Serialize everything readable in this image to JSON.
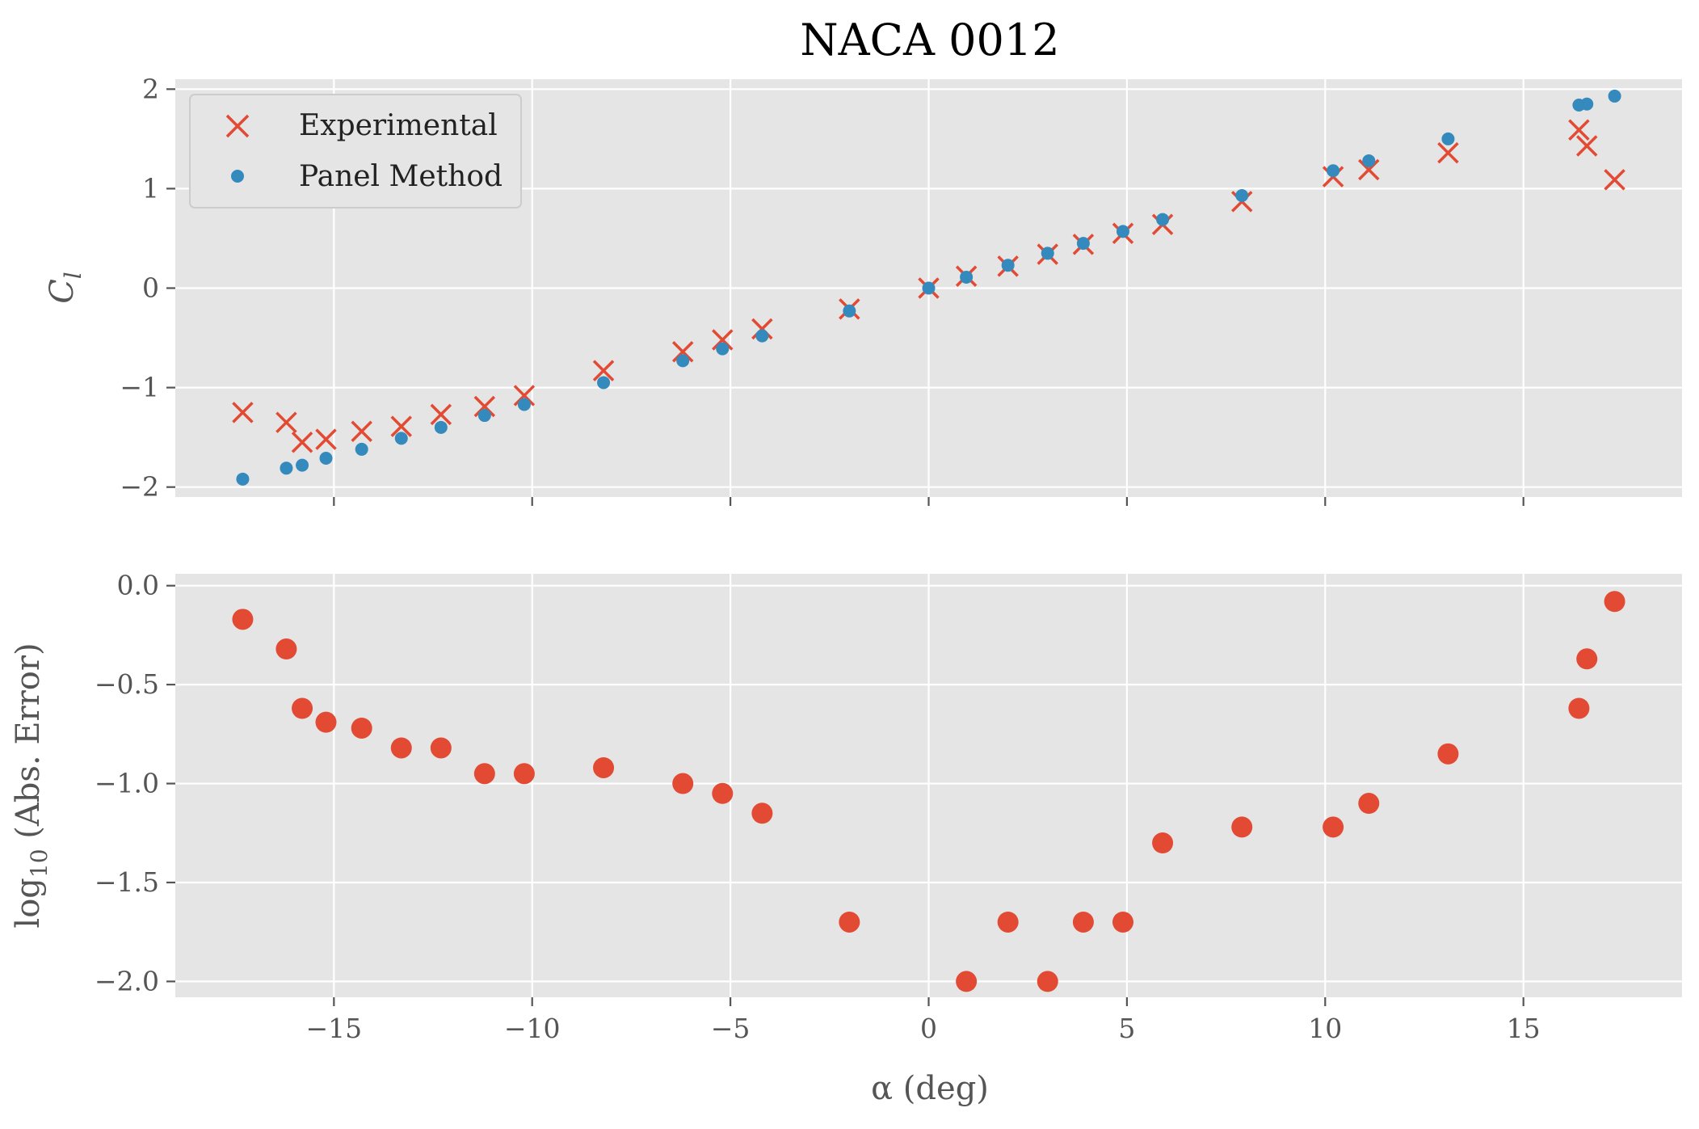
{
  "chart_data": [
    {
      "type": "scatter",
      "title": "NACA 0012",
      "ylabel_main": "C",
      "ylabel_sub": "l",
      "xlabel": "",
      "xlim": [
        -19,
        19
      ],
      "ylim": [
        -2.1,
        2.1
      ],
      "xticks": [
        -15,
        -10,
        -5,
        0,
        5,
        10,
        15
      ],
      "yticks": [
        2,
        1,
        0,
        -1,
        -2
      ],
      "ytick_labels": [
        "2",
        "1",
        "0",
        "−1",
        "−2"
      ],
      "show_xtick_labels": false,
      "grid": true,
      "legend_position": "top-left",
      "legend": [
        {
          "label": "Experimental",
          "marker": "x",
          "color": "#E24A33"
        },
        {
          "label": "Panel Method",
          "marker": "dot",
          "color": "#348ABD"
        }
      ],
      "series": [
        {
          "name": "Experimental",
          "marker": "x",
          "color": "#E24A33",
          "points": [
            [
              -17.3,
              -1.25
            ],
            [
              -16.2,
              -1.35
            ],
            [
              -15.8,
              -1.55
            ],
            [
              -15.2,
              -1.52
            ],
            [
              -14.3,
              -1.44
            ],
            [
              -13.3,
              -1.39
            ],
            [
              -12.3,
              -1.27
            ],
            [
              -11.2,
              -1.19
            ],
            [
              -10.2,
              -1.08
            ],
            [
              -8.2,
              -0.83
            ],
            [
              -6.2,
              -0.64
            ],
            [
              -5.2,
              -0.52
            ],
            [
              -4.2,
              -0.41
            ],
            [
              -2.0,
              -0.21
            ],
            [
              0.0,
              0.0
            ],
            [
              0.95,
              0.12
            ],
            [
              2.0,
              0.22
            ],
            [
              3.0,
              0.34
            ],
            [
              3.9,
              0.44
            ],
            [
              4.9,
              0.55
            ],
            [
              5.9,
              0.64
            ],
            [
              7.9,
              0.87
            ],
            [
              10.2,
              1.12
            ],
            [
              11.1,
              1.19
            ],
            [
              13.1,
              1.36
            ],
            [
              16.4,
              1.59
            ],
            [
              16.6,
              1.43
            ],
            [
              17.3,
              1.09
            ]
          ]
        },
        {
          "name": "Panel Method",
          "marker": "dot",
          "color": "#348ABD",
          "points": [
            [
              -17.3,
              -1.92
            ],
            [
              -16.2,
              -1.81
            ],
            [
              -15.8,
              -1.78
            ],
            [
              -15.2,
              -1.71
            ],
            [
              -14.3,
              -1.62
            ],
            [
              -13.3,
              -1.51
            ],
            [
              -12.3,
              -1.4
            ],
            [
              -11.2,
              -1.28
            ],
            [
              -10.2,
              -1.17
            ],
            [
              -8.2,
              -0.95
            ],
            [
              -6.2,
              -0.73
            ],
            [
              -5.2,
              -0.61
            ],
            [
              -4.2,
              -0.48
            ],
            [
              -2.0,
              -0.23
            ],
            [
              0.0,
              0.0
            ],
            [
              0.95,
              0.11
            ],
            [
              2.0,
              0.23
            ],
            [
              3.0,
              0.35
            ],
            [
              3.9,
              0.45
            ],
            [
              4.9,
              0.57
            ],
            [
              5.9,
              0.69
            ],
            [
              7.9,
              0.93
            ],
            [
              10.2,
              1.18
            ],
            [
              11.1,
              1.28
            ],
            [
              13.1,
              1.5
            ],
            [
              16.4,
              1.84
            ],
            [
              16.6,
              1.85
            ],
            [
              17.3,
              1.93
            ]
          ]
        }
      ]
    },
    {
      "type": "scatter",
      "title": "",
      "ylabel_main": "log",
      "ylabel_sub": "10",
      "ylabel_rest": " (Abs. Error)",
      "xlabel": "α (deg)",
      "xlim": [
        -19,
        19
      ],
      "ylim": [
        -2.08,
        0.06
      ],
      "xticks": [
        -15,
        -10,
        -5,
        0,
        5,
        10,
        15
      ],
      "xtick_labels": [
        "−15",
        "−10",
        "−5",
        "0",
        "5",
        "10",
        "15"
      ],
      "yticks": [
        0.0,
        -0.5,
        -1.0,
        -1.5,
        -2.0
      ],
      "ytick_labels": [
        "0.0",
        "−0.5",
        "−1.0",
        "−1.5",
        "−2.0"
      ],
      "show_xtick_labels": true,
      "grid": true,
      "series": [
        {
          "name": "",
          "marker": "big-dot",
          "color": "#E24A33",
          "points": [
            [
              -17.3,
              -0.17
            ],
            [
              -16.2,
              -0.32
            ],
            [
              -15.8,
              -0.62
            ],
            [
              -15.2,
              -0.69
            ],
            [
              -14.3,
              -0.72
            ],
            [
              -13.3,
              -0.82
            ],
            [
              -12.3,
              -0.82
            ],
            [
              -11.2,
              -0.95
            ],
            [
              -10.2,
              -0.95
            ],
            [
              -8.2,
              -0.92
            ],
            [
              -6.2,
              -1.0
            ],
            [
              -5.2,
              -1.05
            ],
            [
              -4.2,
              -1.15
            ],
            [
              -2.0,
              -1.7
            ],
            [
              0.95,
              -2.0
            ],
            [
              2.0,
              -1.7
            ],
            [
              3.0,
              -2.0
            ],
            [
              3.9,
              -1.7
            ],
            [
              4.9,
              -1.7
            ],
            [
              5.9,
              -1.3
            ],
            [
              7.9,
              -1.22
            ],
            [
              10.2,
              -1.22
            ],
            [
              11.1,
              -1.1
            ],
            [
              13.1,
              -0.85
            ],
            [
              16.4,
              -0.62
            ],
            [
              16.6,
              -0.37
            ],
            [
              17.3,
              -0.08
            ]
          ]
        }
      ]
    }
  ]
}
